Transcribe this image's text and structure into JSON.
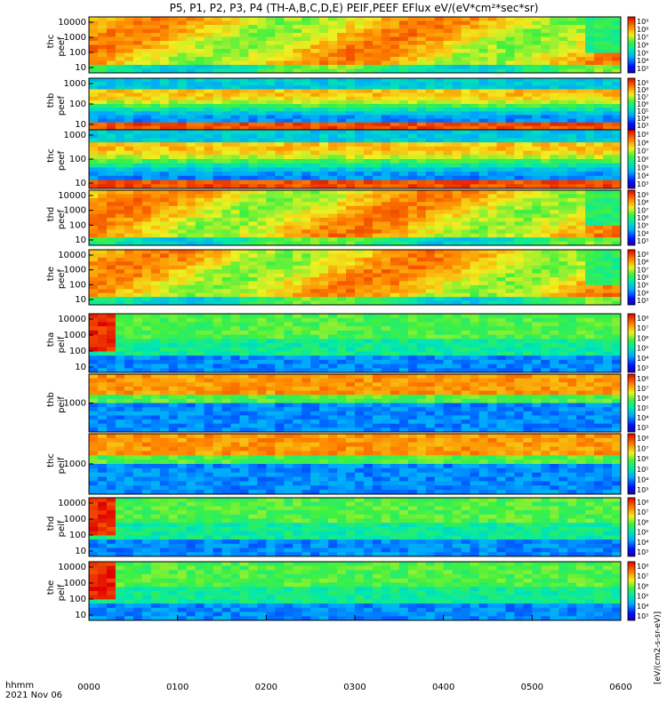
{
  "chart_data": {
    "type": "heatmap",
    "title": "P5, P1, P2, P3, P4 (TH-A,B,C,D,E) PEIF,PEEF EFlux eV/(eV*cm²*sec*sr)",
    "x_axis": {
      "ticks": [
        "0000",
        "0100",
        "0200",
        "0300",
        "0400",
        "0500",
        "0600"
      ],
      "label_line1": "hhmm",
      "label_line2": "2021 Nov 06",
      "range": [
        "0000",
        "0600"
      ]
    },
    "colorbar_unit": "[eV/(cm2-s-sr-eV)]",
    "colorbar_ticks": [
      "10⁹",
      "10⁸",
      "10⁷",
      "10⁶",
      "10⁵",
      "10⁴",
      "10³"
    ],
    "panels": [
      {
        "name": "thc peef",
        "line1": "thc",
        "line2": "peef",
        "y_ticks": [
          "10000",
          "1000",
          "100",
          "10"
        ],
        "scale": "log",
        "colorbar_range": [
          "10³",
          "10⁹"
        ]
      },
      {
        "name": "thb peef",
        "line1": "thb",
        "line2": "peef",
        "y_ticks": [
          "1000",
          "100",
          "10"
        ],
        "scale": "log",
        "colorbar_range": [
          "10³",
          "10⁹"
        ]
      },
      {
        "name": "thc peef",
        "line1": "thc",
        "line2": "peef",
        "y_ticks": [
          "1000",
          "100",
          "10"
        ],
        "scale": "log",
        "colorbar_range": [
          "10³",
          "10⁹"
        ]
      },
      {
        "name": "thd peef",
        "line1": "thd",
        "line2": "peef",
        "y_ticks": [
          "10000",
          "1000",
          "100",
          "10"
        ],
        "scale": "log",
        "colorbar_range": [
          "10³",
          "10⁹"
        ]
      },
      {
        "name": "the peef",
        "line1": "the",
        "line2": "peef",
        "y_ticks": [
          "10000",
          "1000",
          "100",
          "10"
        ],
        "scale": "log",
        "colorbar_range": [
          "10³",
          "10⁹"
        ]
      },
      {
        "name": "tha peif",
        "line1": "tha",
        "line2": "peif",
        "y_ticks": [
          "10000",
          "1000",
          "100",
          "10"
        ],
        "scale": "log",
        "colorbar_range": [
          "10³",
          "10⁸"
        ]
      },
      {
        "name": "thb peif",
        "line1": "thb",
        "line2": "peif",
        "y_ticks": [
          "1000"
        ],
        "scale": "log",
        "colorbar_range": [
          "10³",
          "10⁸"
        ]
      },
      {
        "name": "thc peif",
        "line1": "thc",
        "line2": "peif",
        "y_ticks": [
          "1000"
        ],
        "scale": "log",
        "colorbar_range": [
          "10³",
          "10⁸"
        ]
      },
      {
        "name": "thd peif",
        "line1": "thd",
        "line2": "peif",
        "y_ticks": [
          "10000",
          "1000",
          "100",
          "10"
        ],
        "scale": "log",
        "colorbar_range": [
          "10³",
          "10⁸"
        ]
      },
      {
        "name": "the peif",
        "line1": "the",
        "line2": "peif",
        "y_ticks": [
          "10000",
          "1000",
          "100",
          "10"
        ],
        "scale": "log",
        "colorbar_range": [
          "10³",
          "10⁸"
        ]
      }
    ]
  }
}
